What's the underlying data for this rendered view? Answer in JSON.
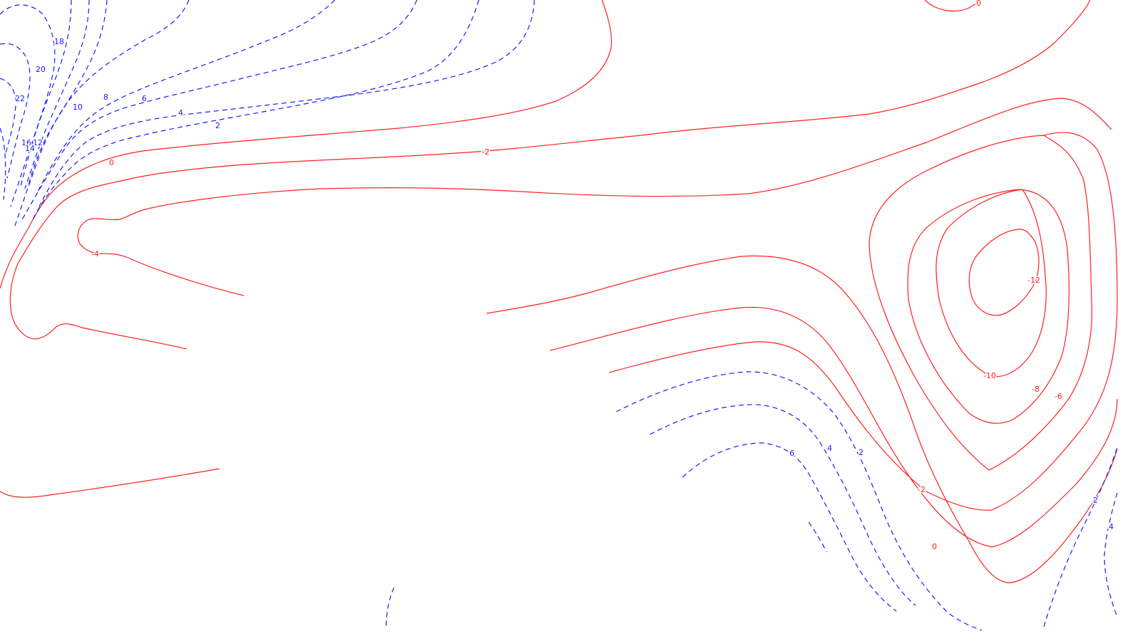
{
  "colors": {
    "negative": "#ff2020",
    "positive": "#1a1aff",
    "background": "#ffffff"
  },
  "contour_labels": {
    "neg_0_top_right": "0",
    "neg_0_left": "0",
    "neg_0_bottom": "0",
    "neg_2_top": "-2",
    "neg_2_bottom": "-2",
    "neg_4_left": "-4",
    "neg_6": "-6",
    "neg_8": "-8",
    "neg_10": "-10",
    "neg_12": "-12",
    "pos_22": "22",
    "pos_20": "20",
    "pos_18": "18",
    "pos_16": "16",
    "pos_14": "14",
    "pos_12": "12",
    "pos_10": "10",
    "pos_8": "8",
    "pos_6_top": "6",
    "pos_4_top": "4",
    "pos_2_top": "2",
    "pos_6_bottom": "6",
    "pos_4_bottom": "4",
    "pos_2_bottom": "2",
    "pos_2_right": "2",
    "pos_4_right": "4"
  }
}
